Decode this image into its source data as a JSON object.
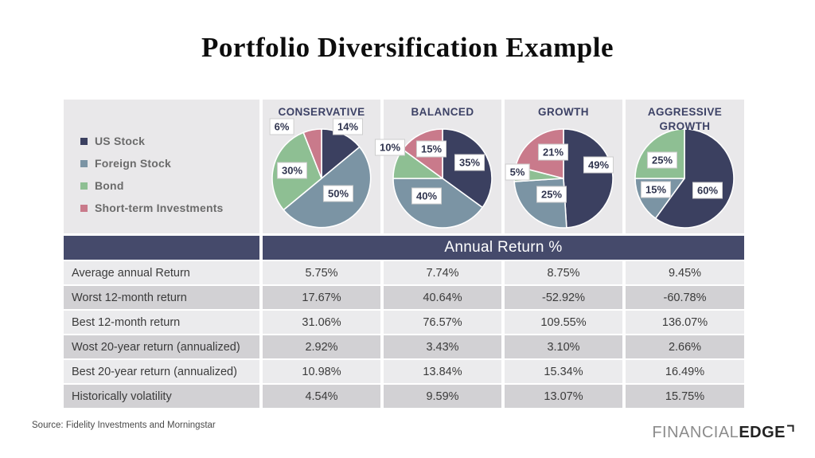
{
  "page": {
    "title": "Portfolio Diversification Example",
    "source": "Source: Fidelity Investments and Morningstar",
    "logo": {
      "part1": "FINANCIAL",
      "part2": "EDGE"
    }
  },
  "colors": {
    "us_stock": "#3b4060",
    "foreign_stock": "#7b94a4",
    "bond": "#8ebf93",
    "short_term": "#c97a8b",
    "panel_bg": "#e9e8ea",
    "table_header_bg": "#454a6b",
    "row_light": "#ebebed",
    "row_dark": "#d2d1d4",
    "pie_title_text": "#3d4266",
    "legend_text": "#6b6b6b"
  },
  "legend": {
    "items": [
      {
        "label": "US Stock",
        "color": "#3b4060"
      },
      {
        "label": "Foreign Stock",
        "color": "#7b94a4"
      },
      {
        "label": "Bond",
        "color": "#8ebf93"
      },
      {
        "label": "Short-term Investments",
        "color": "#c97a8b"
      }
    ]
  },
  "chart_data": [
    {
      "type": "pie",
      "title": "CONSERVATIVE",
      "start_angle_deg": 0,
      "direction": "clockwise",
      "slices": [
        {
          "label": "US Stock",
          "value": 14,
          "color": "#3b4060",
          "label_pos": [
            107,
            34
          ]
        },
        {
          "label": "Foreign Stock",
          "value": 50,
          "color": "#7b94a4",
          "label_pos": [
            95,
            118
          ]
        },
        {
          "label": "Bond",
          "value": 30,
          "color": "#8ebf93",
          "label_pos": [
            37,
            89
          ]
        },
        {
          "label": "Short-term Investments",
          "value": 6,
          "color": "#c97a8b",
          "label_pos": [
            24,
            34
          ]
        }
      ]
    },
    {
      "type": "pie",
      "title": "BALANCED",
      "start_angle_deg": 0,
      "direction": "clockwise",
      "slices": [
        {
          "label": "US Stock",
          "value": 35,
          "color": "#3b4060",
          "label_pos": [
            108,
            79
          ]
        },
        {
          "label": "Foreign Stock",
          "value": 40,
          "color": "#7b94a4",
          "label_pos": [
            54,
            121
          ]
        },
        {
          "label": "Bond",
          "value": 10,
          "color": "#8ebf93",
          "label_pos": [
            8,
            60
          ]
        },
        {
          "label": "Short-term Investments",
          "value": 15,
          "color": "#c97a8b",
          "label_pos": [
            60,
            62
          ]
        }
      ]
    },
    {
      "type": "pie",
      "title": "GROWTH",
      "start_angle_deg": 0,
      "direction": "clockwise",
      "slices": [
        {
          "label": "US Stock",
          "value": 49,
          "color": "#3b4060",
          "label_pos": [
            118,
            82
          ]
        },
        {
          "label": "Foreign Stock",
          "value": 25,
          "color": "#7b94a4",
          "label_pos": [
            59,
            119
          ]
        },
        {
          "label": "Bond",
          "value": 5,
          "color": "#8ebf93",
          "label_pos": [
            16,
            91
          ]
        },
        {
          "label": "Short-term Investments",
          "value": 21,
          "color": "#c97a8b",
          "label_pos": [
            61,
            66
          ]
        }
      ]
    },
    {
      "type": "pie",
      "title": "AGGRESSIVE GROWTH",
      "start_angle_deg": 0,
      "direction": "clockwise",
      "slices": [
        {
          "label": "US Stock",
          "value": 60,
          "color": "#3b4060",
          "label_pos": [
            103,
            114
          ]
        },
        {
          "label": "Foreign Stock",
          "value": 15,
          "color": "#7b94a4",
          "label_pos": [
            38,
            113
          ]
        },
        {
          "label": "Bond",
          "value": 25,
          "color": "#8ebf93",
          "label_pos": [
            46,
            76
          ]
        },
        {
          "label": "Short-term Investments",
          "value": 0,
          "color": "#c97a8b",
          "label_pos": null
        }
      ]
    }
  ],
  "table": {
    "header_label": "Annual Return %",
    "rows": [
      {
        "label": "Average annual Return",
        "values": [
          "5.75%",
          "7.74%",
          "8.75%",
          "9.45%"
        ]
      },
      {
        "label": "Worst 12-month return",
        "values": [
          "17.67%",
          "40.64%",
          "-52.92%",
          "-60.78%"
        ]
      },
      {
        "label": "Best 12-month return",
        "values": [
          "31.06%",
          "76.57%",
          "109.55%",
          "136.07%"
        ]
      },
      {
        "label": "Wost 20-year return (annualized)",
        "values": [
          "2.92%",
          "3.43%",
          "3.10%",
          "2.66%"
        ]
      },
      {
        "label": "Best 20-year return (annualized)",
        "values": [
          "10.98%",
          "13.84%",
          "15.34%",
          "16.49%"
        ]
      },
      {
        "label": "Historically volatility",
        "values": [
          "4.54%",
          "9.59%",
          "13.07%",
          "15.75%"
        ]
      }
    ]
  }
}
